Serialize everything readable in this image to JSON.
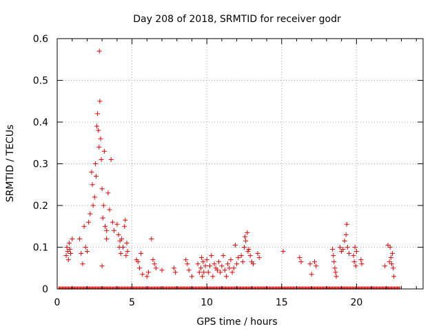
{
  "chart_data": {
    "type": "scatter",
    "title": "Day 208 of 2018, SRMTID for receiver godr",
    "xlabel": "GPS time / hours",
    "ylabel": "SRMTID / TECUs",
    "xlim": [
      0,
      24.45
    ],
    "ylim": [
      0,
      0.6
    ],
    "xticks": [
      "0",
      "5",
      "10",
      "15",
      "20"
    ],
    "yticks": [
      "0",
      "0.1",
      "0.2",
      "0.3",
      "0.4",
      "0.5",
      "0.6"
    ],
    "grid": true,
    "marker": "+",
    "series": [
      {
        "name": "SRMTID",
        "color": "#e00000",
        "zero_baseline_x": [
          0.1,
          22.9
        ],
        "points": [
          [
            0.6,
            0.08
          ],
          [
            0.65,
            0.1
          ],
          [
            0.7,
            0.09
          ],
          [
            0.75,
            0.07
          ],
          [
            0.8,
            0.11
          ],
          [
            0.85,
            0.095
          ],
          [
            0.9,
            0.085
          ],
          [
            1.0,
            0.12
          ],
          [
            1.5,
            0.12
          ],
          [
            1.6,
            0.085
          ],
          [
            1.7,
            0.06
          ],
          [
            1.8,
            0.15
          ],
          [
            1.9,
            0.1
          ],
          [
            2.0,
            0.09
          ],
          [
            2.1,
            0.16
          ],
          [
            2.2,
            0.18
          ],
          [
            2.3,
            0.28
          ],
          [
            2.35,
            0.25
          ],
          [
            2.4,
            0.2
          ],
          [
            2.5,
            0.22
          ],
          [
            2.55,
            0.3
          ],
          [
            2.6,
            0.27
          ],
          [
            2.65,
            0.39
          ],
          [
            2.7,
            0.42
          ],
          [
            2.75,
            0.38
          ],
          [
            2.8,
            0.34
          ],
          [
            2.82,
            0.57
          ],
          [
            2.85,
            0.45
          ],
          [
            2.9,
            0.36
          ],
          [
            2.95,
            0.31
          ],
          [
            3.0,
            0.24
          ],
          [
            3.05,
            0.17
          ],
          [
            3.1,
            0.2
          ],
          [
            3.15,
            0.33
          ],
          [
            3.2,
            0.15
          ],
          [
            3.3,
            0.12
          ],
          [
            3.4,
            0.23
          ],
          [
            3.5,
            0.19
          ],
          [
            3.6,
            0.31
          ],
          [
            3.7,
            0.16
          ],
          [
            3.0,
            0.055
          ],
          [
            3.3,
            0.14
          ],
          [
            3.8,
            0.14
          ],
          [
            4.0,
            0.155
          ],
          [
            4.1,
            0.13
          ],
          [
            4.15,
            0.1
          ],
          [
            4.2,
            0.115
          ],
          [
            4.25,
            0.085
          ],
          [
            4.3,
            0.12
          ],
          [
            4.4,
            0.1
          ],
          [
            4.5,
            0.15
          ],
          [
            4.55,
            0.165
          ],
          [
            4.6,
            0.08
          ],
          [
            4.65,
            0.11
          ],
          [
            4.7,
            0.09
          ],
          [
            5.3,
            0.07
          ],
          [
            5.4,
            0.065
          ],
          [
            5.5,
            0.05
          ],
          [
            5.6,
            0.085
          ],
          [
            5.7,
            0.035
          ],
          [
            6.0,
            0.03
          ],
          [
            6.1,
            0.04
          ],
          [
            6.3,
            0.12
          ],
          [
            6.4,
            0.07
          ],
          [
            6.5,
            0.06
          ],
          [
            6.6,
            0.05
          ],
          [
            7.0,
            0.045
          ],
          [
            7.8,
            0.05
          ],
          [
            7.9,
            0.04
          ],
          [
            8.6,
            0.07
          ],
          [
            8.7,
            0.06
          ],
          [
            8.8,
            0.045
          ],
          [
            9.0,
            0.03
          ],
          [
            9.4,
            0.06
          ],
          [
            9.5,
            0.04
          ],
          [
            9.6,
            0.05
          ],
          [
            9.65,
            0.075
          ],
          [
            9.7,
            0.03
          ],
          [
            9.75,
            0.065
          ],
          [
            9.8,
            0.04
          ],
          [
            9.9,
            0.055
          ],
          [
            10.0,
            0.07
          ],
          [
            10.1,
            0.04
          ],
          [
            10.2,
            0.055
          ],
          [
            10.3,
            0.08
          ],
          [
            10.4,
            0.03
          ],
          [
            10.5,
            0.06
          ],
          [
            10.6,
            0.05
          ],
          [
            10.7,
            0.045
          ],
          [
            10.8,
            0.065
          ],
          [
            10.9,
            0.04
          ],
          [
            11.0,
            0.055
          ],
          [
            11.1,
            0.08
          ],
          [
            11.2,
            0.045
          ],
          [
            11.3,
            0.03
          ],
          [
            11.4,
            0.06
          ],
          [
            11.5,
            0.05
          ],
          [
            11.6,
            0.07
          ],
          [
            11.7,
            0.04
          ],
          [
            11.8,
            0.05
          ],
          [
            11.9,
            0.105
          ],
          [
            12.0,
            0.06
          ],
          [
            12.1,
            0.075
          ],
          [
            12.3,
            0.08
          ],
          [
            12.4,
            0.065
          ],
          [
            12.5,
            0.1
          ],
          [
            12.55,
            0.125
          ],
          [
            12.6,
            0.115
          ],
          [
            12.7,
            0.135
          ],
          [
            12.75,
            0.09
          ],
          [
            12.8,
            0.095
          ],
          [
            12.9,
            0.08
          ],
          [
            13.0,
            0.065
          ],
          [
            13.1,
            0.06
          ],
          [
            13.4,
            0.085
          ],
          [
            13.5,
            0.075
          ],
          [
            15.1,
            0.09
          ],
          [
            16.2,
            0.075
          ],
          [
            16.3,
            0.065
          ],
          [
            16.9,
            0.06
          ],
          [
            17.0,
            0.035
          ],
          [
            17.2,
            0.065
          ],
          [
            17.3,
            0.055
          ],
          [
            18.4,
            0.095
          ],
          [
            18.45,
            0.08
          ],
          [
            18.5,
            0.065
          ],
          [
            18.55,
            0.05
          ],
          [
            18.6,
            0.04
          ],
          [
            18.65,
            0.03
          ],
          [
            18.9,
            0.1
          ],
          [
            19.0,
            0.09
          ],
          [
            19.1,
            0.095
          ],
          [
            19.2,
            0.115
          ],
          [
            19.3,
            0.13
          ],
          [
            19.35,
            0.155
          ],
          [
            19.4,
            0.1
          ],
          [
            19.5,
            0.085
          ],
          [
            19.8,
            0.08
          ],
          [
            19.85,
            0.065
          ],
          [
            19.9,
            0.1
          ],
          [
            19.95,
            0.055
          ],
          [
            20.0,
            0.09
          ],
          [
            20.3,
            0.07
          ],
          [
            20.35,
            0.06
          ],
          [
            21.9,
            0.055
          ],
          [
            22.1,
            0.105
          ],
          [
            22.2,
            0.065
          ],
          [
            22.25,
            0.1
          ],
          [
            22.3,
            0.075
          ],
          [
            22.35,
            0.06
          ],
          [
            22.4,
            0.085
          ],
          [
            22.45,
            0.05
          ],
          [
            22.5,
            0.03
          ]
        ]
      }
    ]
  }
}
